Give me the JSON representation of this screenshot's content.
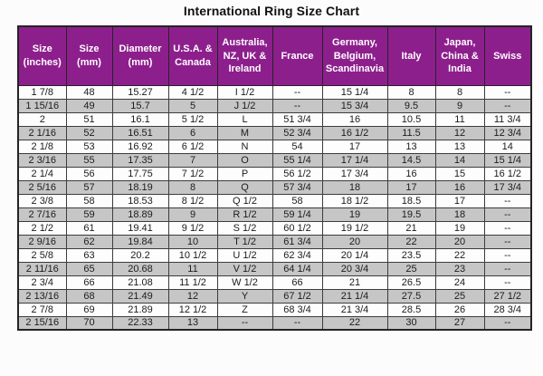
{
  "page": {
    "title": "International Ring Size Chart"
  },
  "colors": {
    "header_bg": "#8d1f8d",
    "header_text": "#ffffff",
    "row_bg": "#fdfdfd",
    "row_alt_bg": "#c6c6c6",
    "border": "#3c3c3c",
    "cell_text": "#1c1c1c"
  },
  "chart_data": {
    "type": "table",
    "title": "International Ring Size Chart",
    "columns": [
      "Size (inches)",
      "Size (mm)",
      "Diameter (mm)",
      "U.S.A. & Canada",
      "Australia, NZ, UK & Ireland",
      "France",
      "Germany, Belgium, Scandinavia",
      "Italy",
      "Japan, China & India",
      "Swiss"
    ],
    "rows": [
      [
        "1 7/8",
        "48",
        "15.27",
        "4 1/2",
        "I 1/2",
        "--",
        "15 1/4",
        "8",
        "8",
        "--"
      ],
      [
        "1 15/16",
        "49",
        "15.7",
        "5",
        "J 1/2",
        "--",
        "15 3/4",
        "9.5",
        "9",
        "--"
      ],
      [
        "2",
        "51",
        "16.1",
        "5 1/2",
        "L",
        "51 3/4",
        "16",
        "10.5",
        "11",
        "11 3/4"
      ],
      [
        "2 1/16",
        "52",
        "16.51",
        "6",
        "M",
        "52 3/4",
        "16 1/2",
        "11.5",
        "12",
        "12 3/4"
      ],
      [
        "2 1/8",
        "53",
        "16.92",
        "6 1/2",
        "N",
        "54",
        "17",
        "13",
        "13",
        "14"
      ],
      [
        "2 3/16",
        "55",
        "17.35",
        "7",
        "O",
        "55 1/4",
        "17 1/4",
        "14.5",
        "14",
        "15 1/4"
      ],
      [
        "2 1/4",
        "56",
        "17.75",
        "7 1/2",
        "P",
        "56 1/2",
        "17 3/4",
        "16",
        "15",
        "16 1/2"
      ],
      [
        "2 5/16",
        "57",
        "18.19",
        "8",
        "Q",
        "57 3/4",
        "18",
        "17",
        "16",
        "17 3/4"
      ],
      [
        "2 3/8",
        "58",
        "18.53",
        "8 1/2",
        "Q 1/2",
        "58",
        "18 1/2",
        "18.5",
        "17",
        "--"
      ],
      [
        "2 7/16",
        "59",
        "18.89",
        "9",
        "R 1/2",
        "59 1/4",
        "19",
        "19.5",
        "18",
        "--"
      ],
      [
        "2 1/2",
        "61",
        "19.41",
        "9 1/2",
        "S 1/2",
        "60 1/2",
        "19 1/2",
        "21",
        "19",
        "--"
      ],
      [
        "2 9/16",
        "62",
        "19.84",
        "10",
        "T 1/2",
        "61 3/4",
        "20",
        "22",
        "20",
        "--"
      ],
      [
        "2 5/8",
        "63",
        "20.2",
        "10 1/2",
        "U 1/2",
        "62 3/4",
        "20 1/4",
        "23.5",
        "22",
        "--"
      ],
      [
        "2 11/16",
        "65",
        "20.68",
        "11",
        "V 1/2",
        "64 1/4",
        "20 3/4",
        "25",
        "23",
        "--"
      ],
      [
        "2 3/4",
        "66",
        "21.08",
        "11 1/2",
        "W 1/2",
        "66",
        "21",
        "26.5",
        "24",
        "--"
      ],
      [
        "2 13/16",
        "68",
        "21.49",
        "12",
        "Y",
        "67 1/2",
        "21 1/4",
        "27.5",
        "25",
        "27 1/2"
      ],
      [
        "2 7/8",
        "69",
        "21.89",
        "12 1/2",
        "Z",
        "68 3/4",
        "21 3/4",
        "28.5",
        "26",
        "28 3/4"
      ],
      [
        "2 15/16",
        "70",
        "22.33",
        "13",
        "--",
        "--",
        "22",
        "30",
        "27",
        "--"
      ]
    ]
  }
}
